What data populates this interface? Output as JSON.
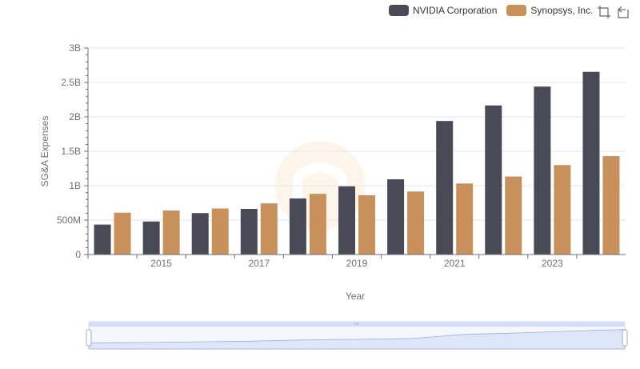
{
  "chart_data": {
    "type": "bar",
    "title": "",
    "xlabel": "Year",
    "ylabel": "SG&A Expenses",
    "categories": [
      "2014",
      "2015",
      "2016",
      "2017",
      "2018",
      "2019",
      "2020",
      "2021",
      "2022",
      "2023",
      "2024"
    ],
    "x_tick_labels": [
      "2015",
      "2017",
      "2019",
      "2021",
      "2023"
    ],
    "y_ticks": [
      {
        "value": 0,
        "label": "0"
      },
      {
        "value": 500000000,
        "label": "500M"
      },
      {
        "value": 1000000000,
        "label": "1B"
      },
      {
        "value": 1500000000,
        "label": "1.5B"
      },
      {
        "value": 2000000000,
        "label": "2B"
      },
      {
        "value": 2500000000,
        "label": "2.5B"
      },
      {
        "value": 3000000000,
        "label": "3B"
      }
    ],
    "ylim": [
      0,
      3000000000
    ],
    "grid": true,
    "legend_position": "top-right",
    "series": [
      {
        "name": "NVIDIA Corporation",
        "color": "#4a4a57",
        "values": [
          435000000,
          480000000,
          602000000,
          663000000,
          815000000,
          991000000,
          1093000000,
          1940000000,
          2166000000,
          2440000000,
          2654000000
        ]
      },
      {
        "name": "Synopsys, Inc.",
        "color": "#c8915c",
        "values": [
          608000000,
          640000000,
          669000000,
          743000000,
          882000000,
          862000000,
          916000000,
          1032000000,
          1134000000,
          1300000000,
          1429000000
        ]
      }
    ]
  },
  "toolbar": {
    "zoom_icon": "zoom-select-icon",
    "restore_icon": "restore-icon"
  },
  "zoom_slider": {
    "start": 0,
    "end": 100
  },
  "colors": {
    "grid": "#e0e6f1",
    "slider_fill": "#d4defa",
    "slider_border": "#9bb0e0"
  }
}
